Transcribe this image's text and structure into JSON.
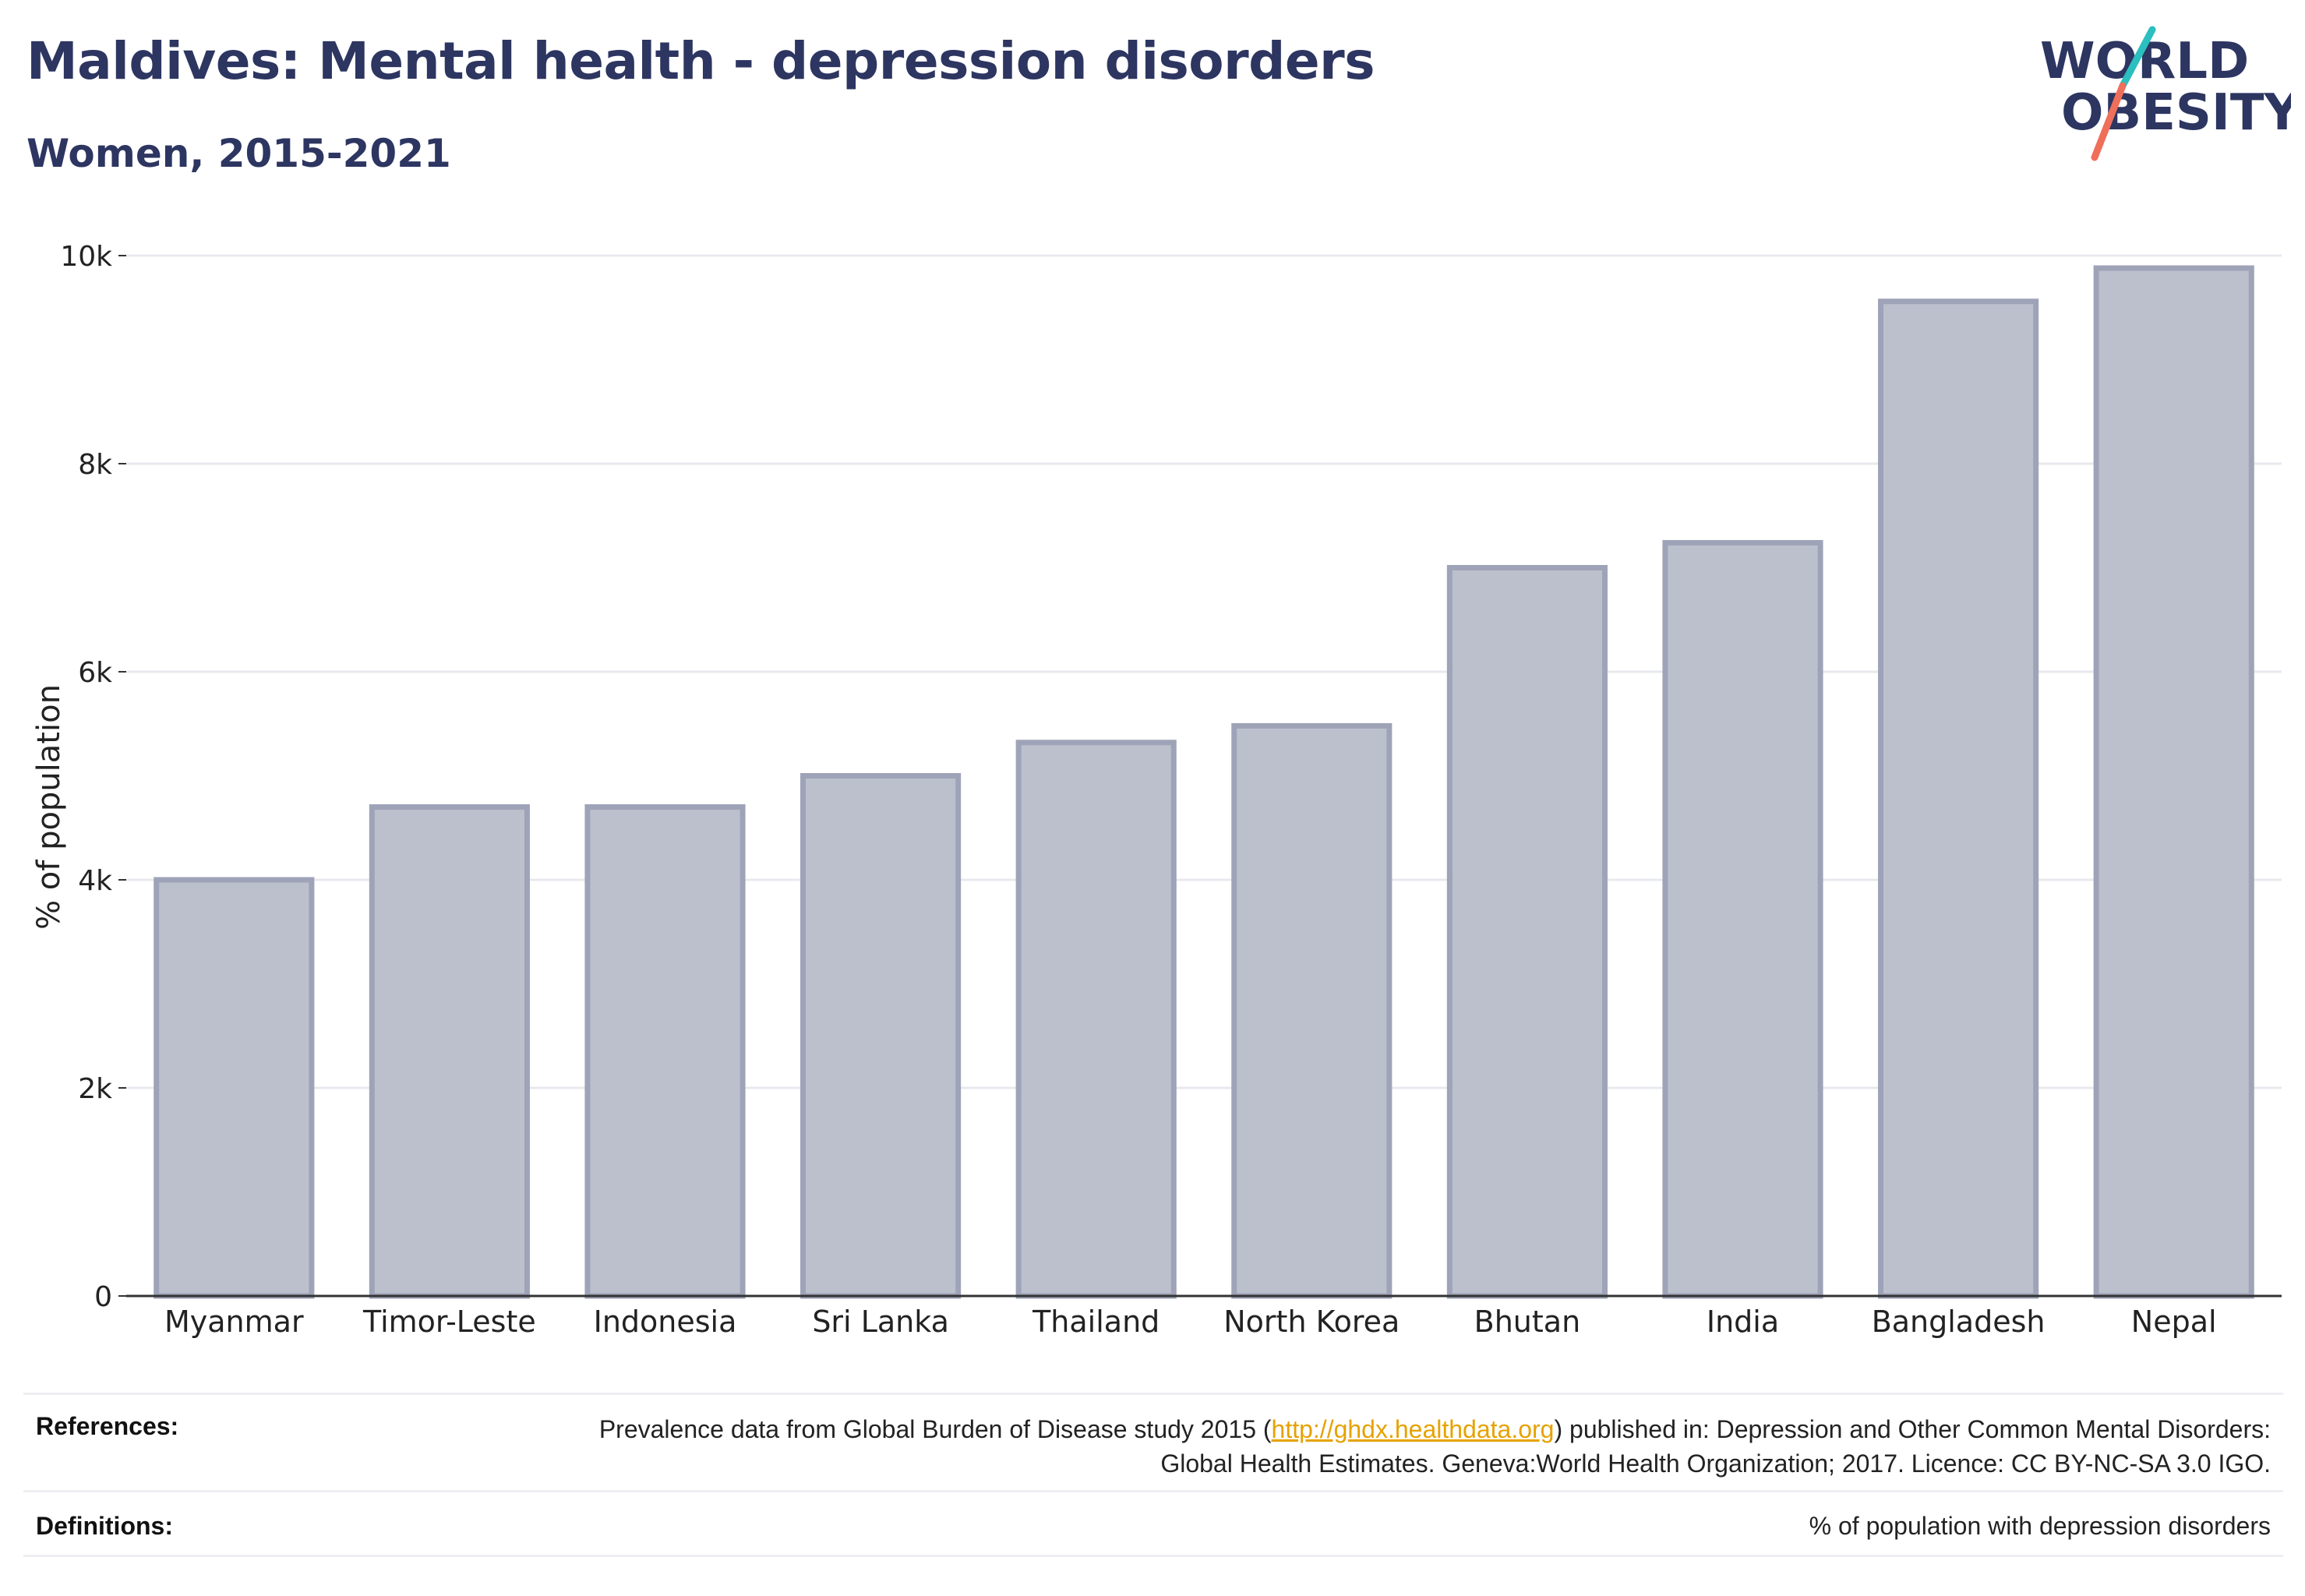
{
  "header": {
    "title": "Maldives: Mental health - depression disorders",
    "subtitle": "Women, 2015-2021"
  },
  "logo": {
    "line1": "WORLD",
    "line2": "OBESITY",
    "text_color": "#2d3561",
    "accent_teal": "#2bbfbf",
    "accent_coral": "#ef6f5a"
  },
  "chart_data": {
    "type": "bar",
    "title": "Maldives: Mental health - depression disorders",
    "subtitle": "Women, 2015-2021",
    "xlabel": "",
    "ylabel": "% of population",
    "ylim": [
      0,
      10000
    ],
    "yticks": [
      {
        "value": 0,
        "label": "0"
      },
      {
        "value": 2000,
        "label": "2k"
      },
      {
        "value": 4000,
        "label": "4k"
      },
      {
        "value": 6000,
        "label": "6k"
      },
      {
        "value": 8000,
        "label": "8k"
      },
      {
        "value": 10000,
        "label": "10k"
      }
    ],
    "categories": [
      "Myanmar",
      "Timor-Leste",
      "Indonesia",
      "Sri Lanka",
      "Thailand",
      "North Korea",
      "Bhutan",
      "India",
      "Bangladesh",
      "Nepal"
    ],
    "values": [
      4000,
      4700,
      4700,
      5000,
      5320,
      5480,
      7000,
      7240,
      9560,
      9880
    ],
    "bar_color": "#bcc0cd",
    "bar_edge_color": "#9ea3b8",
    "grid": true,
    "legend": "none"
  },
  "footer": {
    "references_label": "References:",
    "references_text_before": "Prevalence data from Global Burden of Disease study 2015 (",
    "references_link": "http://ghdx.healthdata.org",
    "references_text_after": ") published in: Depression and Other Common Mental Disorders: Global Health Estimates. Geneva:World Health Organization; 2017. Licence: CC BY-NC-SA 3.0 IGO.",
    "definitions_label": "Definitions:",
    "definitions_text": "% of population with depression disorders"
  }
}
